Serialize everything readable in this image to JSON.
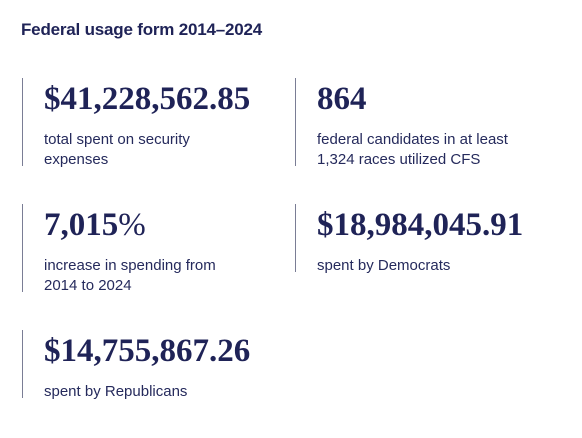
{
  "header": {
    "title": "Federal usage form 2014–2024"
  },
  "stats": [
    {
      "value": "$41,228,562.85",
      "label": "total spent on security expenses"
    },
    {
      "value": "864",
      "label": "federal candidates in at least 1,324 races utilized CFS"
    },
    {
      "value": "7,015",
      "unit": "%",
      "label": "increase in spending from 2014 to 2024"
    },
    {
      "value": "$18,984,045.91",
      "label": "spent by Democrats"
    },
    {
      "value": "$14,755,867.26",
      "label": "spent by Republicans"
    }
  ]
}
